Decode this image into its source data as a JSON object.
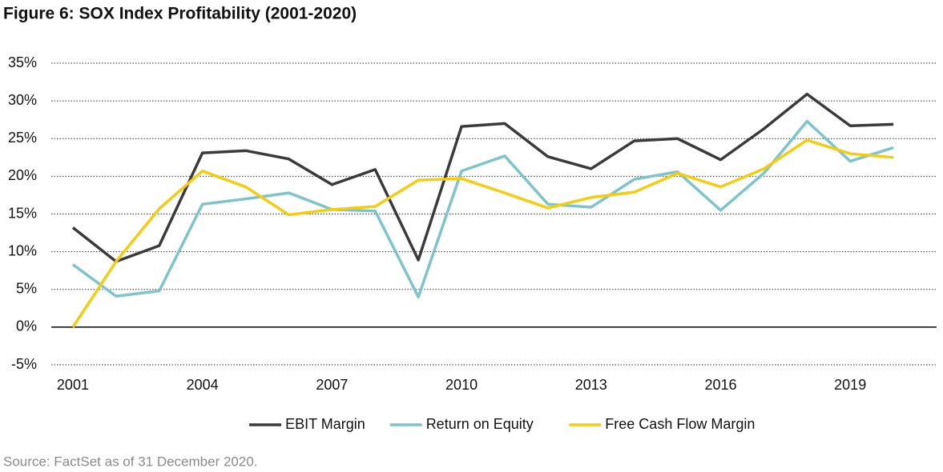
{
  "chart_data": {
    "type": "line",
    "title": "Figure 6: SOX Index Profitability (2001-2020)",
    "source": "Source: FactSet as of 31 December 2020.",
    "x": [
      2001,
      2002,
      2003,
      2004,
      2005,
      2006,
      2007,
      2008,
      2009,
      2010,
      2011,
      2012,
      2013,
      2014,
      2015,
      2016,
      2017,
      2018,
      2019,
      2020
    ],
    "series": [
      {
        "name": "EBIT Margin",
        "color": "#3a3a3a",
        "values": [
          13.2,
          8.7,
          10.8,
          23.1,
          23.4,
          22.3,
          18.9,
          20.9,
          8.9,
          26.6,
          27.0,
          22.6,
          21.0,
          24.7,
          25.0,
          22.2,
          26.3,
          30.9,
          26.7,
          26.9
        ]
      },
      {
        "name": "Return on Equity",
        "color": "#7ec4cb",
        "values": [
          8.3,
          4.1,
          4.8,
          16.3,
          17.0,
          17.8,
          15.6,
          15.4,
          4.0,
          20.7,
          22.7,
          16.3,
          15.9,
          19.6,
          20.6,
          15.5,
          20.4,
          27.3,
          22.0,
          23.8
        ]
      },
      {
        "name": "Free Cash Flow Margin",
        "color": "#f5cc10",
        "values": [
          0,
          8.7,
          15.7,
          20.7,
          18.6,
          14.9,
          15.6,
          16.0,
          19.5,
          19.7,
          17.8,
          15.8,
          17.2,
          17.9,
          20.4,
          18.6,
          21.0,
          24.8,
          23.0,
          22.5
        ]
      }
    ],
    "xlim": [
      2000.5,
      2021
    ],
    "xticks": [
      2001,
      2004,
      2007,
      2010,
      2013,
      2016,
      2019
    ],
    "ylim": [
      -5,
      35
    ],
    "yticks": [
      {
        "value": -5,
        "label": "-5%"
      },
      {
        "value": 0,
        "label": "0%"
      },
      {
        "value": 5,
        "label": "5%"
      },
      {
        "value": 10,
        "label": "10%"
      },
      {
        "value": 15,
        "label": "15%"
      },
      {
        "value": 20,
        "label": "20%"
      },
      {
        "value": 25,
        "label": "25%"
      },
      {
        "value": 30,
        "label": "30%"
      },
      {
        "value": 35,
        "label": "35%"
      }
    ],
    "grid": true
  }
}
